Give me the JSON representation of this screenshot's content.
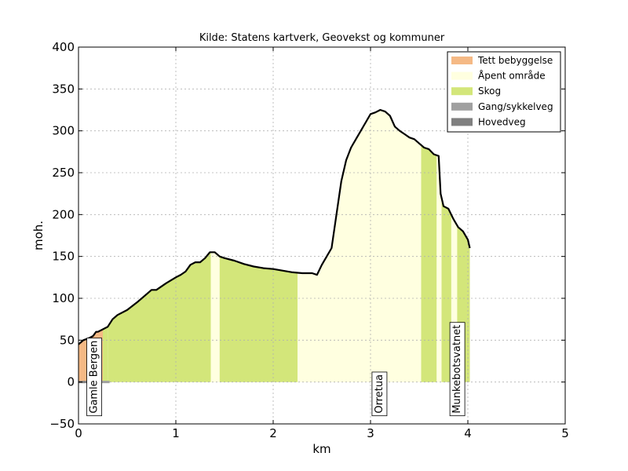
{
  "chart_data": {
    "type": "area",
    "title": "Kilde: Statens kartverk, Geovekst og kommuner",
    "xlabel": "km",
    "ylabel": "moh.",
    "xlim": [
      0,
      5
    ],
    "ylim": [
      -50,
      400
    ],
    "x_ticks": [
      0,
      1,
      2,
      3,
      4,
      5
    ],
    "y_ticks": [
      -50,
      0,
      50,
      100,
      150,
      200,
      250,
      300,
      350,
      400
    ],
    "grid": true,
    "legend_position": "top-right",
    "legend": [
      {
        "label": "Tett bebyggelse",
        "color": "#f5b985"
      },
      {
        "label": "Åpent område",
        "color": "#ffffe0"
      },
      {
        "label": "Skog",
        "color": "#d3e67a"
      },
      {
        "label": "Gang/sykkelveg",
        "color": "#a0a0a0"
      },
      {
        "label": "Hovedveg",
        "color": "#808080"
      }
    ],
    "land_use": [
      {
        "type": "Tett bebyggelse",
        "x0": 0.0,
        "x1": 0.25
      },
      {
        "type": "Skog",
        "x0": 0.25,
        "x1": 0.3
      },
      {
        "type": "Skog",
        "x0": 0.3,
        "x1": 1.36
      },
      {
        "type": "Åpent område",
        "x0": 1.36,
        "x1": 1.45
      },
      {
        "type": "Skog",
        "x0": 1.45,
        "x1": 2.25
      },
      {
        "type": "Åpent område",
        "x0": 2.25,
        "x1": 3.52
      },
      {
        "type": "Skog",
        "x0": 3.52,
        "x1": 3.68
      },
      {
        "type": "Åpent område",
        "x0": 3.68,
        "x1": 3.73
      },
      {
        "type": "Skog",
        "x0": 3.73,
        "x1": 3.83
      },
      {
        "type": "Åpent område",
        "x0": 3.83,
        "x1": 3.89
      },
      {
        "type": "Skog",
        "x0": 3.89,
        "x1": 4.02
      }
    ],
    "roads": [
      {
        "type": "Hovedveg",
        "x0": 0.0,
        "x1": 0.1
      },
      {
        "type": "Gang/sykkelveg",
        "x0": 0.1,
        "x1": 0.32
      }
    ],
    "profile": {
      "x": [
        0.0,
        0.05,
        0.1,
        0.15,
        0.18,
        0.2,
        0.25,
        0.3,
        0.35,
        0.4,
        0.5,
        0.6,
        0.7,
        0.75,
        0.8,
        0.9,
        1.0,
        1.05,
        1.1,
        1.15,
        1.2,
        1.25,
        1.3,
        1.35,
        1.4,
        1.45,
        1.5,
        1.6,
        1.7,
        1.8,
        1.9,
        2.0,
        2.1,
        2.2,
        2.3,
        2.4,
        2.45,
        2.5,
        2.55,
        2.6,
        2.65,
        2.7,
        2.75,
        2.8,
        2.85,
        2.9,
        2.95,
        3.0,
        3.05,
        3.1,
        3.15,
        3.2,
        3.25,
        3.3,
        3.35,
        3.4,
        3.45,
        3.5,
        3.55,
        3.6,
        3.65,
        3.7,
        3.72,
        3.75,
        3.8,
        3.85,
        3.9,
        3.95,
        4.0,
        4.02
      ],
      "y": [
        45,
        50,
        52,
        55,
        60,
        60,
        63,
        66,
        75,
        80,
        86,
        95,
        105,
        110,
        110,
        118,
        125,
        128,
        132,
        140,
        143,
        143,
        148,
        155,
        155,
        150,
        148,
        145,
        141,
        138,
        136,
        135,
        133,
        131,
        130,
        130,
        128,
        140,
        150,
        160,
        200,
        240,
        265,
        280,
        290,
        300,
        310,
        320,
        322,
        325,
        323,
        318,
        305,
        300,
        296,
        292,
        290,
        285,
        280,
        278,
        272,
        270,
        225,
        210,
        207,
        195,
        185,
        180,
        170,
        160
      ]
    },
    "annotations": [
      {
        "text": "Gamle Bergen",
        "x": 0.15
      },
      {
        "text": "Orretua",
        "x": 3.08
      },
      {
        "text": "Munkebotsvatnet",
        "x": 3.88
      }
    ]
  }
}
